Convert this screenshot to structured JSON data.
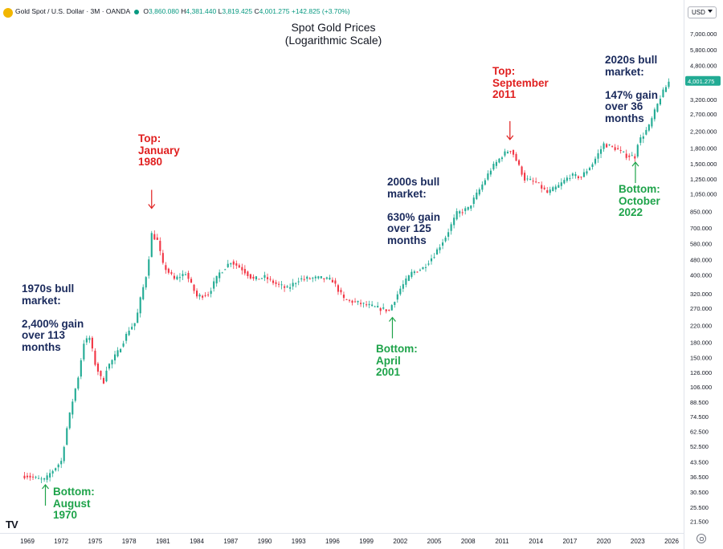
{
  "header": {
    "symbol": "Gold Spot / U.S. Dollar · 3M · OANDA",
    "open_label": "O",
    "open": "3,860.080",
    "high_label": "H",
    "high": "4,381.440",
    "low_label": "L",
    "low": "3,819.425",
    "close_label": "C",
    "close": "4,001.275",
    "change": "+142.825 (+3.70%)"
  },
  "currency": "USD",
  "colors": {
    "up": "#22ab94",
    "down": "#f23645",
    "navy": "#1a2a5c",
    "red": "#e02020",
    "green": "#1ea34a"
  },
  "chart_data": {
    "type": "candlestick",
    "title": "Spot Gold Prices\n(Logarithmic Scale)",
    "yscale": "log",
    "ylim": [
      19.5,
      8000
    ],
    "xlim": [
      1968.5,
      2026.5
    ],
    "y_ticks": [
      "7,000.000",
      "5,800.000",
      "4,800.000",
      "4,000.000",
      "3,200.000",
      "2,700.000",
      "2,200.000",
      "1,800.000",
      "1,500.000",
      "1,250.000",
      "1,050.000",
      "850.000",
      "700.000",
      "580.000",
      "480.000",
      "400.000",
      "320.000",
      "270.000",
      "220.000",
      "180.000",
      "150.000",
      "126.000",
      "106.000",
      "88.500",
      "74.500",
      "62.500",
      "52.500",
      "43.500",
      "36.500",
      "30.500",
      "25.500",
      "21.500"
    ],
    "x_ticks": [
      "1969",
      "1972",
      "1975",
      "1978",
      "1981",
      "1984",
      "1987",
      "1990",
      "1993",
      "1996",
      "1999",
      "2002",
      "2005",
      "2008",
      "2011",
      "2014",
      "2017",
      "2020",
      "2023",
      "2026"
    ],
    "series": [
      {
        "name": "Gold Spot / U.S. Dollar",
        "points": [
          [
            "1969",
            37
          ],
          [
            "1970",
            35.5
          ],
          [
            "1970.6",
            35.2
          ],
          [
            "1971",
            38
          ],
          [
            "1972",
            44
          ],
          [
            "1972.5",
            65
          ],
          [
            "1973",
            90
          ],
          [
            "1973.5",
            120
          ],
          [
            "1974",
            180
          ],
          [
            "1974.5",
            190
          ],
          [
            "1975",
            140
          ],
          [
            "1975.7",
            110
          ],
          [
            "1976",
            132
          ],
          [
            "1977",
            160
          ],
          [
            "1978",
            210
          ],
          [
            "1978.6",
            230
          ],
          [
            "1979",
            300
          ],
          [
            "1979.6",
            420
          ],
          [
            "1980",
            650
          ],
          [
            "1980.5",
            600
          ],
          [
            "1981",
            450
          ],
          [
            "1982",
            380
          ],
          [
            "1983",
            410
          ],
          [
            "1984",
            310
          ],
          [
            "1985",
            320
          ],
          [
            "1986",
            410
          ],
          [
            "1987",
            470
          ],
          [
            "1988",
            430
          ],
          [
            "1989",
            380
          ],
          [
            "1990",
            390
          ],
          [
            "1991",
            360
          ],
          [
            "1992",
            340
          ],
          [
            "1993",
            380
          ],
          [
            "1994",
            385
          ],
          [
            "1995",
            385
          ],
          [
            "1996",
            375
          ],
          [
            "1997",
            300
          ],
          [
            "1998",
            290
          ],
          [
            "1999",
            280
          ],
          [
            "2000",
            270
          ],
          [
            "2001",
            263
          ],
          [
            "2002",
            340
          ],
          [
            "2003",
            410
          ],
          [
            "2004",
            435
          ],
          [
            "2005",
            510
          ],
          [
            "2006",
            630
          ],
          [
            "2007",
            830
          ],
          [
            "2008",
            880
          ],
          [
            "2009",
            1100
          ],
          [
            "2010",
            1400
          ],
          [
            "2011",
            1650
          ],
          [
            "2011.7",
            1780
          ],
          [
            "2012",
            1680
          ],
          [
            "2013",
            1250
          ],
          [
            "2014",
            1200
          ],
          [
            "2015",
            1060
          ],
          [
            "2016",
            1150
          ],
          [
            "2017",
            1300
          ],
          [
            "2018",
            1280
          ],
          [
            "2019",
            1500
          ],
          [
            "2020",
            1890
          ],
          [
            "2021",
            1800
          ],
          [
            "2022",
            1650
          ],
          [
            "2022.8",
            1630
          ],
          [
            "2023",
            1920
          ],
          [
            "2024",
            2330
          ],
          [
            "2025",
            3300
          ],
          [
            "2025.8",
            4001
          ]
        ]
      }
    ],
    "annotations": [
      {
        "id": "bull70",
        "text": "1970s bull\nmarket:\n\n2,400% gain\nover 113\nmonths",
        "color": "navy"
      },
      {
        "id": "top80",
        "text": "Top:\nJanuary\n1980",
        "color": "red",
        "x": 1980.0,
        "y": 850
      },
      {
        "id": "bot70",
        "text": "Bottom:\nAugust\n1970",
        "color": "green",
        "x": 1970.6,
        "y": 35.2
      },
      {
        "id": "bull00",
        "text": "2000s bull\nmarket:\n\n630% gain\nover 125\nmonths",
        "color": "navy"
      },
      {
        "id": "bot01",
        "text": "Bottom:\nApril\n2001",
        "color": "green",
        "x": 2001.3,
        "y": 256
      },
      {
        "id": "top11",
        "text": "Top:\nSeptember\n2011",
        "color": "red",
        "x": 2011.7,
        "y": 1920
      },
      {
        "id": "bull20",
        "text": "2020s bull\nmarket:\n\n147% gain\nover 36\nmonths",
        "color": "navy"
      },
      {
        "id": "bot22",
        "text": "Bottom:\nOctober\n2022",
        "color": "green",
        "x": 2022.8,
        "y": 1615
      }
    ]
  }
}
